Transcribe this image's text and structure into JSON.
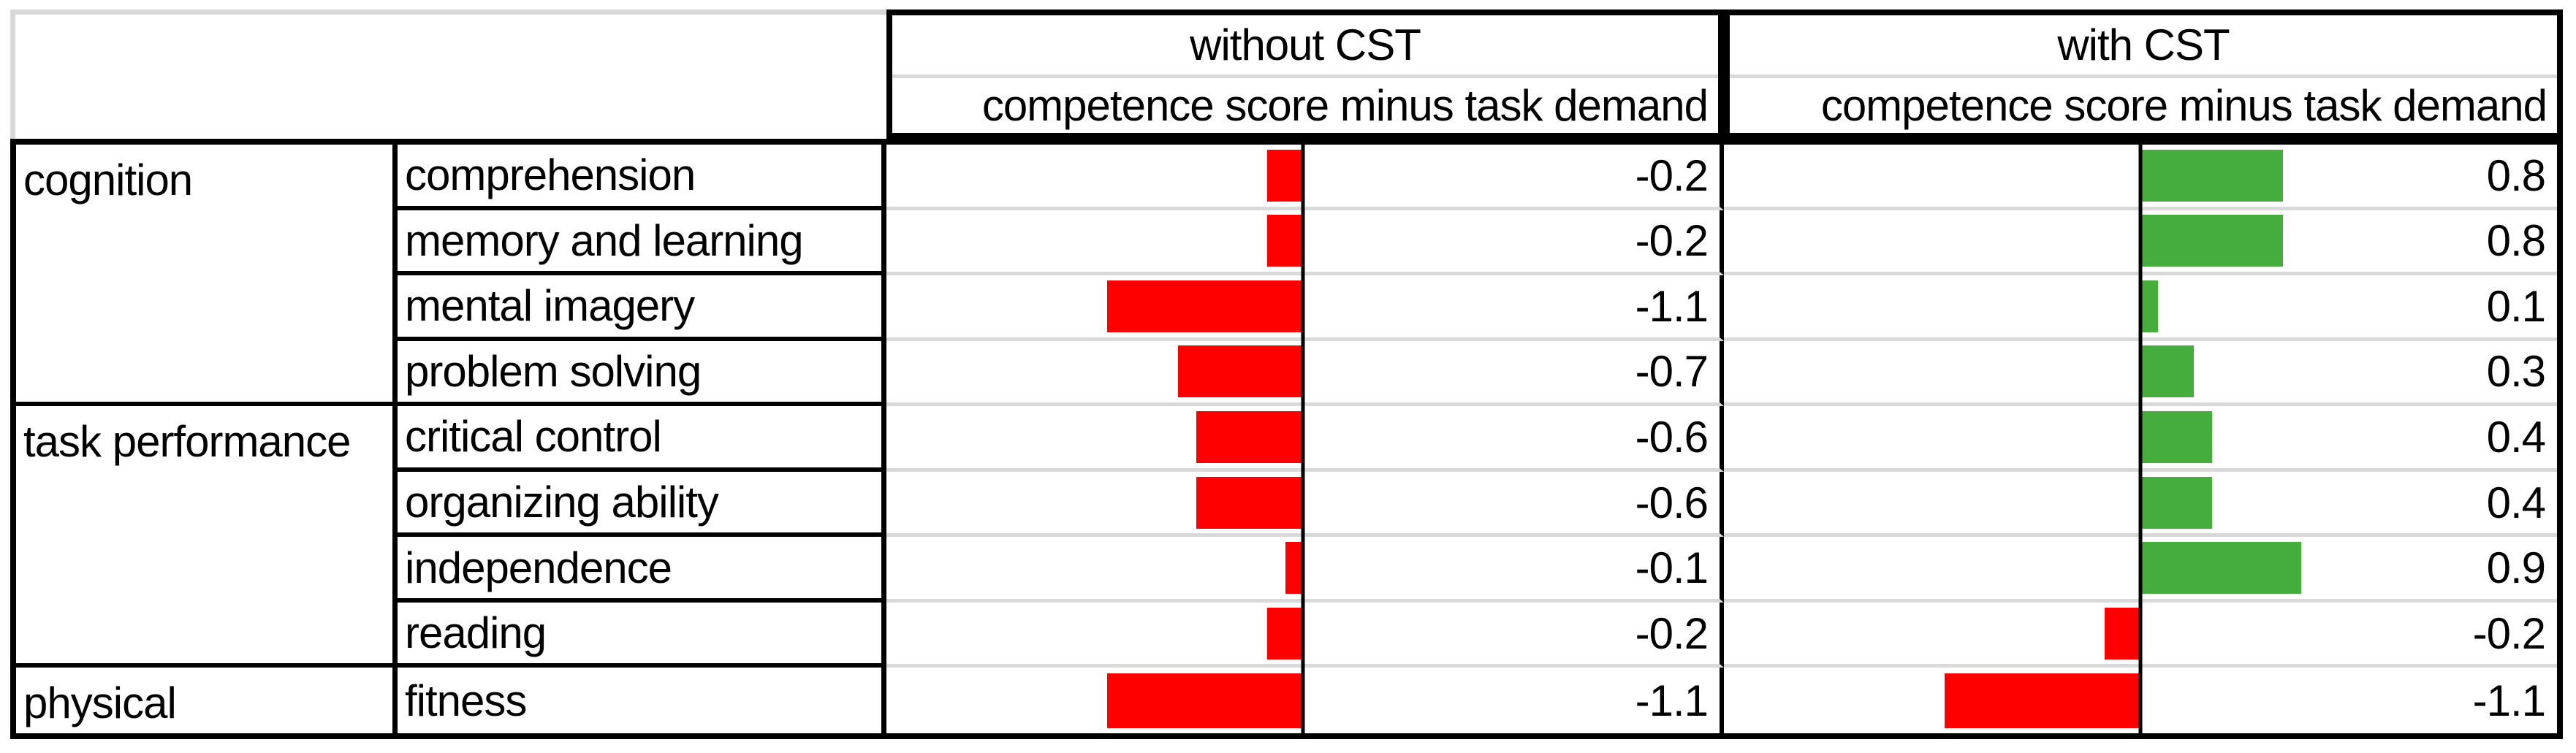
{
  "header": {
    "corner": "",
    "groups": [
      {
        "title": "without CST",
        "subtitle": "competence score minus task demand"
      },
      {
        "title": "with CST",
        "subtitle": "competence score minus task demand"
      }
    ]
  },
  "categories": [
    {
      "label": "cognition",
      "span": 4
    },
    {
      "label": "task performance",
      "span": 4
    },
    {
      "label": "physical",
      "span": 1
    }
  ],
  "rows": [
    {
      "item": "comprehension",
      "without_cst": -0.2,
      "with_cst": 0.8
    },
    {
      "item": "memory and learning",
      "without_cst": -0.2,
      "with_cst": 0.8
    },
    {
      "item": "mental imagery",
      "without_cst": -1.1,
      "with_cst": 0.1
    },
    {
      "item": "problem solving",
      "without_cst": -0.7,
      "with_cst": 0.3
    },
    {
      "item": "critical control",
      "without_cst": -0.6,
      "with_cst": 0.4
    },
    {
      "item": "organizing ability",
      "without_cst": -0.6,
      "with_cst": 0.4
    },
    {
      "item": "independence",
      "without_cst": -0.1,
      "with_cst": 0.9
    },
    {
      "item": "reading",
      "without_cst": -0.2,
      "with_cst": -0.2
    },
    {
      "item": "fitness",
      "without_cst": -1.1,
      "with_cst": -1.1
    }
  ],
  "chart_data": {
    "type": "bar",
    "orientation": "horizontal",
    "categories": [
      "comprehension",
      "memory and learning",
      "mental imagery",
      "problem solving",
      "critical control",
      "organizing ability",
      "independence",
      "reading",
      "fitness"
    ],
    "category_groups": [
      {
        "label": "cognition",
        "items": [
          "comprehension",
          "memory and learning",
          "mental imagery",
          "problem solving"
        ]
      },
      {
        "label": "task performance",
        "items": [
          "critical control",
          "organizing ability",
          "independence",
          "reading"
        ]
      },
      {
        "label": "physical",
        "items": [
          "fitness"
        ]
      }
    ],
    "series": [
      {
        "name": "without CST",
        "values": [
          -0.2,
          -0.2,
          -1.1,
          -0.7,
          -0.6,
          -0.6,
          -0.1,
          -0.2,
          -1.1
        ]
      },
      {
        "name": "with CST",
        "values": [
          0.8,
          0.8,
          0.1,
          0.3,
          0.4,
          0.4,
          0.9,
          -0.2,
          -1.1
        ]
      }
    ],
    "value_axis_label": "competence score minus task demand",
    "zero_axis_fraction_of_cell": 0.5,
    "cell_fraction_per_unit": 0.214,
    "value_format_decimals": 1,
    "grid": "light gray row separators in bar columns, black row separators in label columns",
    "legend": "none"
  },
  "colors": {
    "negative_bar": "#FF0000",
    "positive_bar": "#44AD3C",
    "grid_black": "#000000",
    "row_separator_gray": "#D9D9D9",
    "background": "#FFFFFF",
    "text": "#000000"
  }
}
